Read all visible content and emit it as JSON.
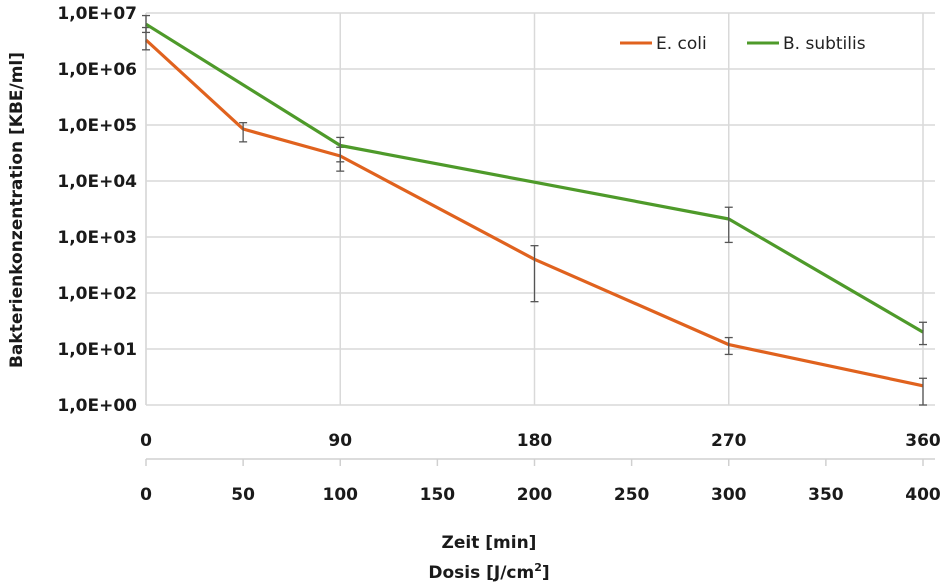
{
  "chart_data": {
    "type": "line",
    "title": "",
    "ylabel": "Bakterienkonzentration [KBE/ml]",
    "xlabel_primary": "Zeit [min]",
    "xlabel_secondary_prefix": "Dosis [J/cm",
    "xlabel_secondary_sup": "2",
    "xlabel_secondary_suffix": "]",
    "y_scale": "log",
    "ylim": [
      1,
      10000000
    ],
    "y_ticks": [
      1,
      10,
      100,
      1000,
      10000,
      100000,
      1000000,
      10000000
    ],
    "y_tick_labels": [
      "1,0E+00",
      "1,0E+01",
      "1,0E+02",
      "1,0E+03",
      "1,0E+04",
      "1,0E+05",
      "1,0E+06",
      "1,0E+07"
    ],
    "xlim": [
      0,
      400
    ],
    "x_ticks_dose": [
      0,
      50,
      100,
      150,
      200,
      250,
      300,
      350,
      400
    ],
    "x_tick_labels_dose": [
      "0",
      "50",
      "100",
      "150",
      "200",
      "250",
      "300",
      "350",
      "400"
    ],
    "x_ticks_time_positions": [
      0,
      100,
      200,
      300,
      400
    ],
    "x_tick_labels_time": [
      "0",
      "90",
      "180",
      "270",
      "360"
    ],
    "grid": true,
    "legend_position": "top-right",
    "series": [
      {
        "name": "E. coli",
        "color": "#E0621E",
        "x": [
          0,
          50,
          100,
          200,
          300,
          400
        ],
        "y": [
          3300000,
          85000,
          28000,
          400,
          12,
          2.2
        ],
        "err_low": [
          2200000,
          50000,
          15000,
          70,
          8,
          1
        ],
        "err_high": [
          5500000,
          110000,
          40000,
          700,
          16,
          3
        ]
      },
      {
        "name": "B. subtilis",
        "color": "#4E9A2A",
        "x": [
          0,
          100,
          200,
          300,
          400
        ],
        "y": [
          6300000,
          43000,
          9500,
          2100,
          20
        ],
        "err_low": [
          4500000,
          22000,
          null,
          800,
          12
        ],
        "err_high": [
          9000000,
          60000,
          null,
          3400,
          30
        ]
      }
    ]
  }
}
